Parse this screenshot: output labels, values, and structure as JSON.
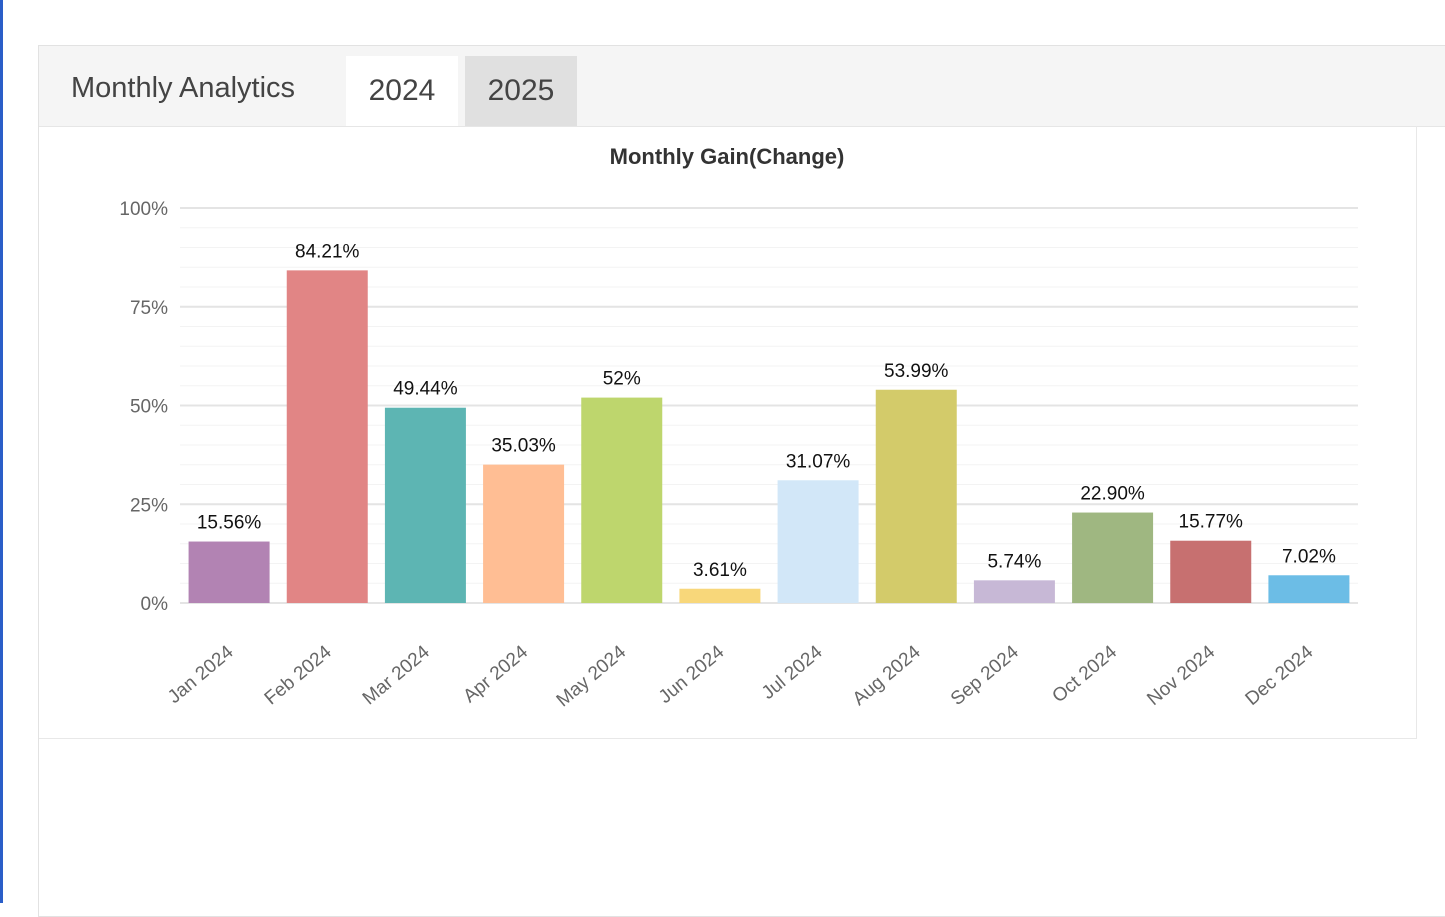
{
  "header": {
    "title": "Monthly Analytics",
    "tabs": [
      "2024",
      "2025"
    ]
  },
  "chart_data": {
    "type": "bar",
    "title": "Monthly Gain(Change)",
    "categories": [
      "Jan 2024",
      "Feb 2024",
      "Mar 2024",
      "Apr 2024",
      "May 2024",
      "Jun 2024",
      "Jul 2024",
      "Aug 2024",
      "Sep 2024",
      "Oct 2024",
      "Nov 2024",
      "Dec 2024"
    ],
    "values": [
      15.56,
      84.21,
      49.44,
      35.03,
      52,
      3.61,
      31.07,
      53.99,
      5.74,
      22.9,
      15.77,
      7.02
    ],
    "value_labels": [
      "15.56%",
      "84.21%",
      "49.44%",
      "35.03%",
      "52%",
      "3.61%",
      "31.07%",
      "53.99%",
      "5.74%",
      "22.90%",
      "15.77%",
      "7.02%"
    ],
    "colors": [
      "#b283b3",
      "#e18585",
      "#5db5b3",
      "#ffbe94",
      "#bed66d",
      "#f8d77a",
      "#d2e7f8",
      "#d3cb6a",
      "#c7b8d6",
      "#9fb781",
      "#c77070",
      "#6cbde6"
    ],
    "ylim": [
      0,
      100
    ],
    "yticks": [
      {
        "value": 0,
        "label": "0%"
      },
      {
        "value": 25,
        "label": "25%"
      },
      {
        "value": 50,
        "label": "50%"
      },
      {
        "value": 75,
        "label": "75%"
      },
      {
        "value": 100,
        "label": "100%"
      }
    ],
    "minor_yticks": [
      5,
      10,
      15,
      20,
      30,
      35,
      40,
      45,
      55,
      60,
      65,
      70,
      80,
      85,
      90,
      95
    ],
    "grid": true
  }
}
